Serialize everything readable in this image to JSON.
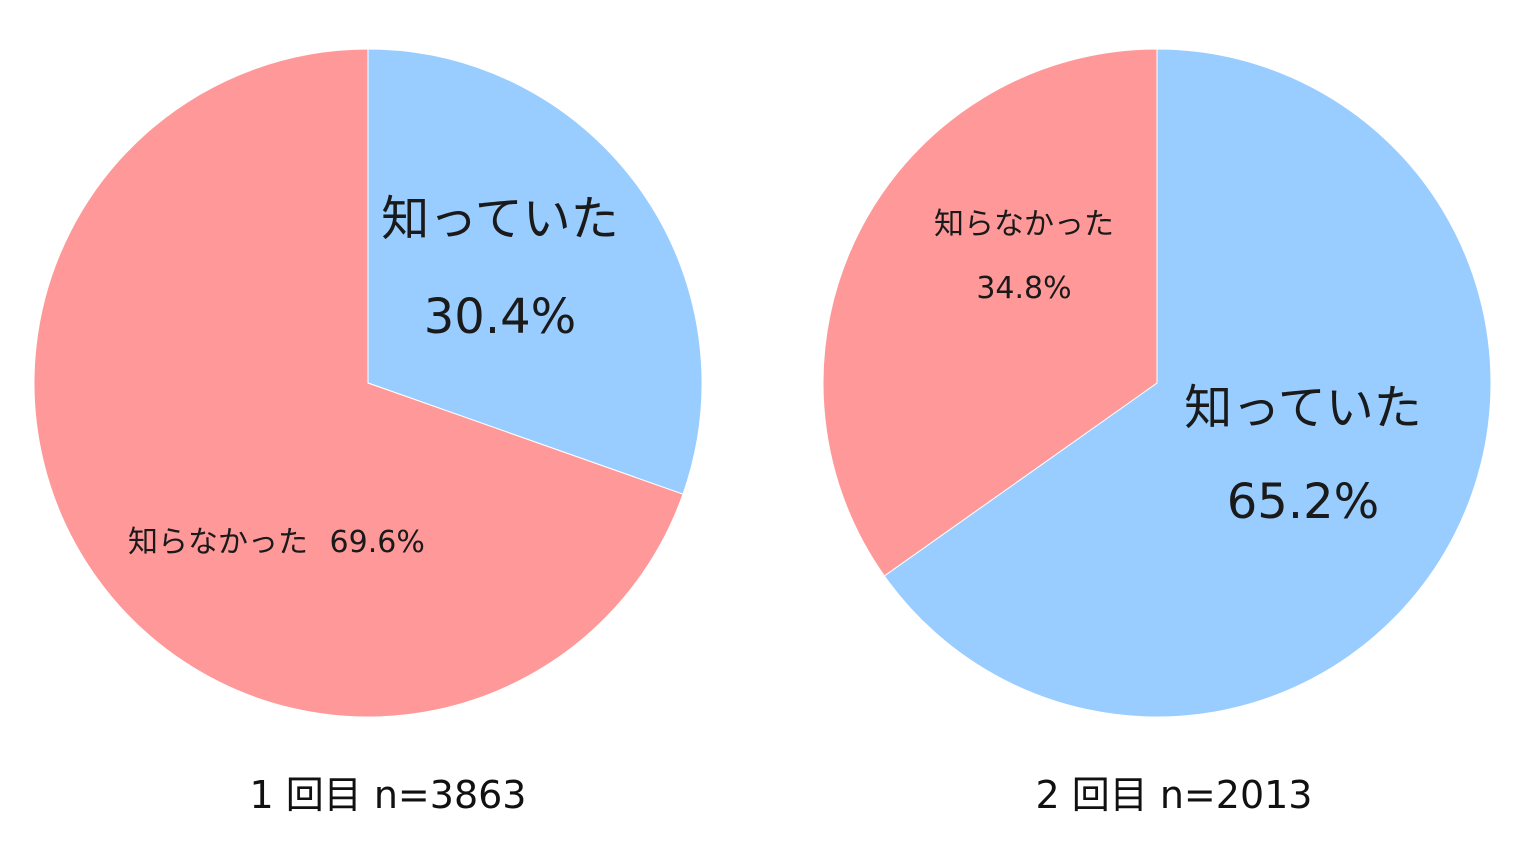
{
  "chart_data": [
    {
      "type": "pie",
      "caption": "1 回目 n=3863",
      "slices": [
        {
          "label": "知っていた",
          "value": 30.4,
          "display": "30.4%",
          "color": "#99CCFF"
        },
        {
          "label": "知らなかった",
          "value": 69.6,
          "display": "69.6%",
          "color": "#FF9999"
        }
      ]
    },
    {
      "type": "pie",
      "caption": "2 回目 n=2013",
      "slices": [
        {
          "label": "知っていた",
          "value": 65.2,
          "display": "65.2%",
          "color": "#99CCFF"
        },
        {
          "label": "知らなかった",
          "value": 34.8,
          "display": "34.8%",
          "color": "#FF9999"
        }
      ]
    }
  ]
}
